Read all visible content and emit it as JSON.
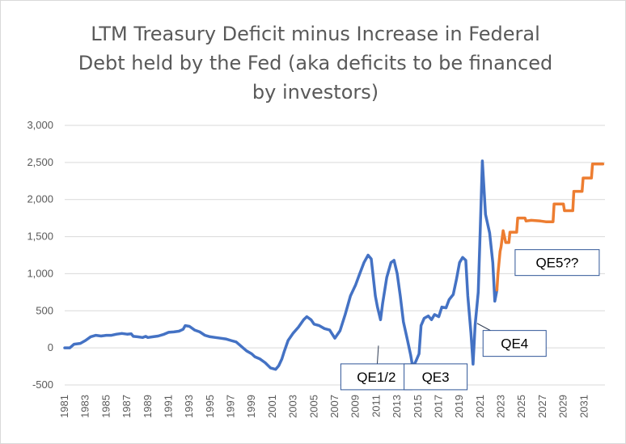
{
  "chart_data": {
    "type": "line",
    "title_lines": [
      "LTM Treasury Deficit minus Increase in Federal",
      "Debt held by the Fed (aka deficits to be financed",
      "by investors)"
    ],
    "ylim": [
      -500,
      3000
    ],
    "y_ticks": [
      "-500",
      "0",
      "500",
      "1,000",
      "1,500",
      "2,000",
      "2,500",
      "3,000"
    ],
    "y_tick_values": [
      -500,
      0,
      500,
      1000,
      1500,
      2000,
      2500,
      3000
    ],
    "xlim": [
      1981,
      2033
    ],
    "x_ticks": [
      "1981",
      "1983",
      "1985",
      "1987",
      "1989",
      "1991",
      "1993",
      "1995",
      "1997",
      "1999",
      "2001",
      "2003",
      "2005",
      "2007",
      "2009",
      "2011",
      "2013",
      "2015",
      "2017",
      "2019",
      "2021",
      "2023",
      "2025",
      "2027",
      "2029",
      "2031"
    ],
    "grid": "horizontal",
    "legend": "none",
    "series": [
      {
        "color": "#4472c4",
        "points": [
          [
            1981.0,
            0
          ],
          [
            1981.5,
            0
          ],
          [
            1981.9,
            50
          ],
          [
            1982.5,
            60
          ],
          [
            1983.0,
            100
          ],
          [
            1983.5,
            150
          ],
          [
            1984.0,
            170
          ],
          [
            1984.5,
            160
          ],
          [
            1985.0,
            170
          ],
          [
            1985.5,
            170
          ],
          [
            1986.0,
            185
          ],
          [
            1986.5,
            195
          ],
          [
            1987.0,
            185
          ],
          [
            1987.4,
            190
          ],
          [
            1987.6,
            155
          ],
          [
            1988.0,
            150
          ],
          [
            1988.5,
            140
          ],
          [
            1988.8,
            155
          ],
          [
            1989.0,
            140
          ],
          [
            1989.5,
            150
          ],
          [
            1990.0,
            160
          ],
          [
            1990.5,
            180
          ],
          [
            1991.0,
            210
          ],
          [
            1991.5,
            215
          ],
          [
            1992.0,
            225
          ],
          [
            1992.4,
            250
          ],
          [
            1992.6,
            300
          ],
          [
            1993.0,
            290
          ],
          [
            1993.5,
            240
          ],
          [
            1994.0,
            215
          ],
          [
            1994.5,
            170
          ],
          [
            1995.0,
            150
          ],
          [
            1995.5,
            140
          ],
          [
            1996.0,
            130
          ],
          [
            1996.5,
            120
          ],
          [
            1997.0,
            100
          ],
          [
            1997.5,
            80
          ],
          [
            1998.0,
            20
          ],
          [
            1998.5,
            -40
          ],
          [
            1999.0,
            -80
          ],
          [
            1999.3,
            -120
          ],
          [
            1999.8,
            -150
          ],
          [
            2000.3,
            -200
          ],
          [
            2000.8,
            -270
          ],
          [
            2001.3,
            -290
          ],
          [
            2001.6,
            -240
          ],
          [
            2001.9,
            -150
          ],
          [
            2002.1,
            -60
          ],
          [
            2002.5,
            100
          ],
          [
            2003.0,
            200
          ],
          [
            2003.5,
            280
          ],
          [
            2004.0,
            380
          ],
          [
            2004.3,
            420
          ],
          [
            2004.7,
            380
          ],
          [
            2005.0,
            320
          ],
          [
            2005.5,
            300
          ],
          [
            2006.0,
            260
          ],
          [
            2006.5,
            240
          ],
          [
            2007.0,
            130
          ],
          [
            2007.5,
            230
          ],
          [
            2008.0,
            450
          ],
          [
            2008.5,
            700
          ],
          [
            2009.0,
            850
          ],
          [
            2009.4,
            1000
          ],
          [
            2009.8,
            1150
          ],
          [
            2010.2,
            1250
          ],
          [
            2010.5,
            1200
          ],
          [
            2010.9,
            700
          ],
          [
            2011.1,
            550
          ],
          [
            2011.4,
            380
          ],
          [
            2011.6,
            600
          ],
          [
            2012.0,
            950
          ],
          [
            2012.4,
            1150
          ],
          [
            2012.7,
            1180
          ],
          [
            2013.0,
            1000
          ],
          [
            2013.3,
            700
          ],
          [
            2013.6,
            350
          ],
          [
            2014.0,
            100
          ],
          [
            2014.3,
            -100
          ],
          [
            2014.5,
            -260
          ],
          [
            2014.8,
            -180
          ],
          [
            2015.1,
            -80
          ],
          [
            2015.3,
            300
          ],
          [
            2015.6,
            400
          ],
          [
            2016.0,
            430
          ],
          [
            2016.3,
            380
          ],
          [
            2016.6,
            450
          ],
          [
            2017.0,
            420
          ],
          [
            2017.3,
            550
          ],
          [
            2017.7,
            540
          ],
          [
            2018.0,
            650
          ],
          [
            2018.4,
            720
          ],
          [
            2018.7,
            920
          ],
          [
            2019.0,
            1150
          ],
          [
            2019.3,
            1220
          ],
          [
            2019.6,
            1180
          ],
          [
            2019.8,
            700
          ],
          [
            2020.1,
            200
          ],
          [
            2020.3,
            -220
          ],
          [
            2020.5,
            300
          ],
          [
            2020.8,
            750
          ],
          [
            2021.0,
            1600
          ],
          [
            2021.2,
            2520
          ],
          [
            2021.5,
            1800
          ],
          [
            2021.9,
            1550
          ],
          [
            2022.2,
            1150
          ],
          [
            2022.4,
            630
          ],
          [
            2022.6,
            780
          ]
        ]
      },
      {
        "color": "#ed7d31",
        "points": [
          [
            2022.6,
            780
          ],
          [
            2022.7,
            1000
          ],
          [
            2022.9,
            1300
          ],
          [
            2023.0,
            1360
          ],
          [
            2023.2,
            1580
          ],
          [
            2023.45,
            1420
          ],
          [
            2023.75,
            1420
          ],
          [
            2023.85,
            1560
          ],
          [
            2024.5,
            1560
          ],
          [
            2024.6,
            1750
          ],
          [
            2025.3,
            1750
          ],
          [
            2025.4,
            1710
          ],
          [
            2025.9,
            1720
          ],
          [
            2026.8,
            1710
          ],
          [
            2027.3,
            1700
          ],
          [
            2028.0,
            1700
          ],
          [
            2028.1,
            1940
          ],
          [
            2029.0,
            1940
          ],
          [
            2029.1,
            1850
          ],
          [
            2029.9,
            1850
          ],
          [
            2030.0,
            2110
          ],
          [
            2030.8,
            2110
          ],
          [
            2030.9,
            2290
          ],
          [
            2031.7,
            2290
          ],
          [
            2031.8,
            2480
          ],
          [
            2032.8,
            2480
          ]
        ]
      }
    ],
    "annotations": [
      {
        "text": "QE1/2",
        "box_at": [
          2011,
          -390
        ],
        "points_to": [
          2011.2,
          30
        ]
      },
      {
        "text": "QE3",
        "box_at": [
          2016.7,
          -390
        ],
        "points_to": [
          2014.6,
          -260
        ]
      },
      {
        "text": "QE4",
        "box_at": [
          2024.3,
          60
        ],
        "points_to": [
          2020.7,
          330
        ]
      },
      {
        "text": "QE5??",
        "box_at": [
          2028.4,
          1150
        ],
        "points_to": null
      }
    ]
  }
}
